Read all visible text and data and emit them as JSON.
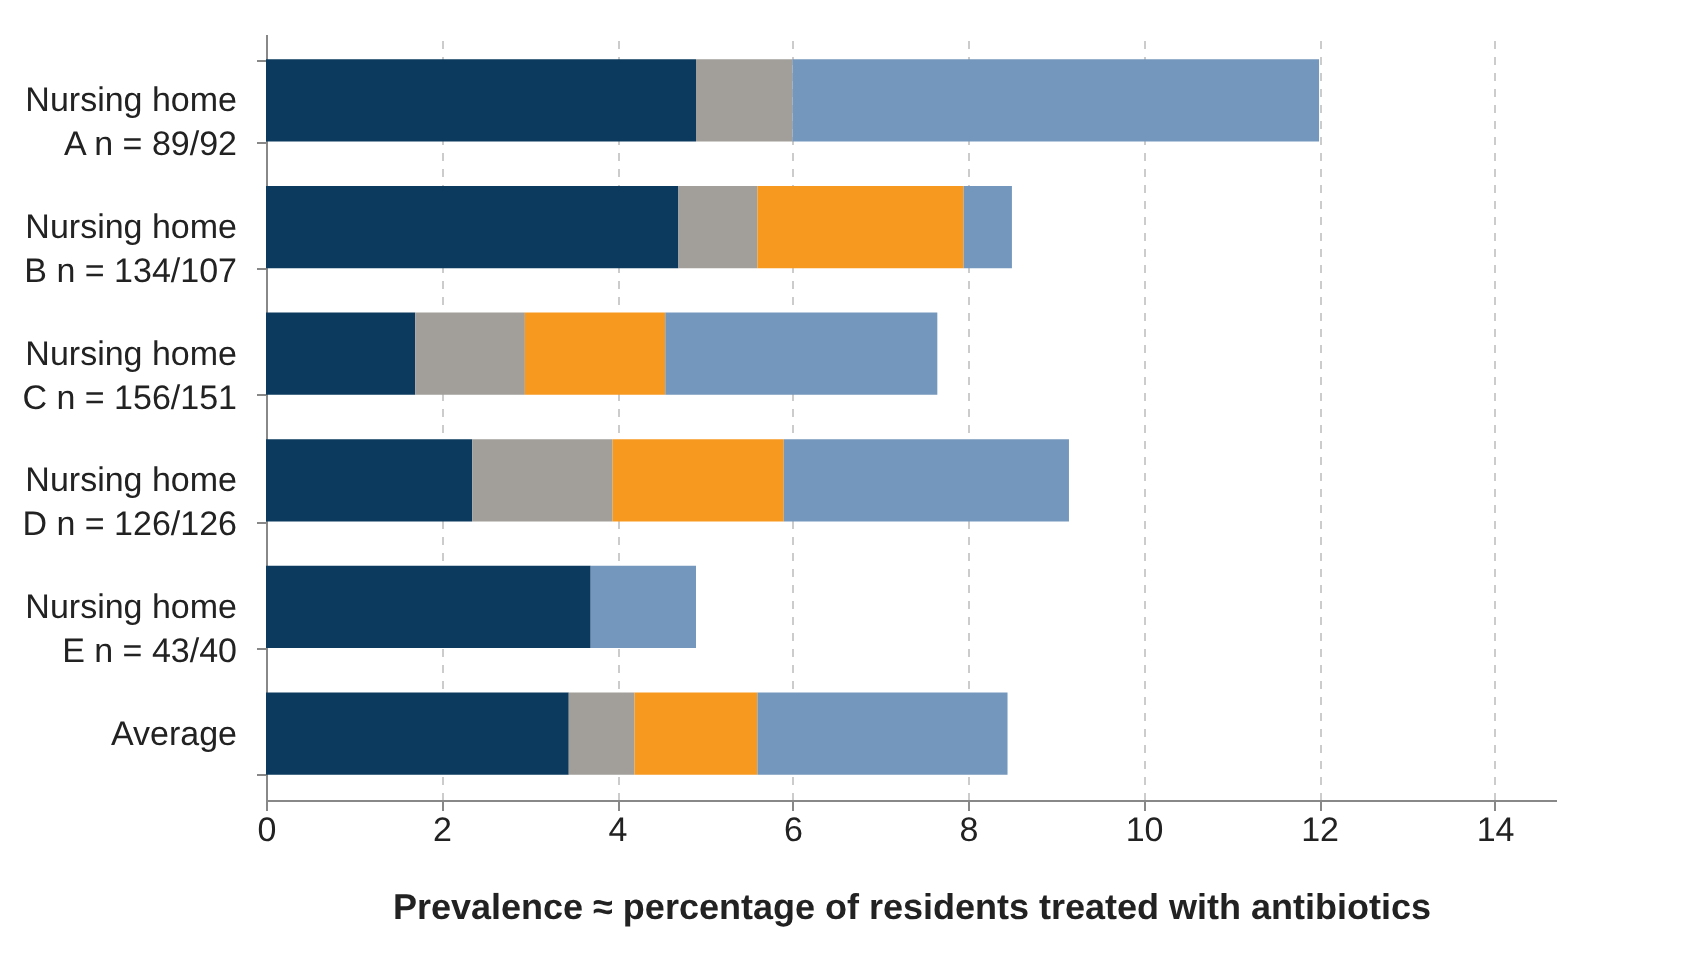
{
  "chart_data": {
    "type": "bar",
    "orientation": "horizontal",
    "stacked": true,
    "categories": [
      "Nursing home\nA  n = 89/92",
      "Nursing home\nB  n = 134/107",
      "Nursing home\nC  n = 156/151",
      "Nursing home\nD  n = 126/126",
      "Nursing home\nE  n = 43/40",
      "Average"
    ],
    "series": [
      {
        "color": "#0b3a5e",
        "values": [
          4.9,
          4.7,
          1.7,
          2.35,
          3.7,
          3.45
        ]
      },
      {
        "color": "#a29f9a",
        "values": [
          1.1,
          0.9,
          1.25,
          1.6,
          null,
          0.75
        ]
      },
      {
        "color": "#f7991f",
        "values": [
          null,
          2.35,
          1.6,
          1.95,
          null,
          1.4
        ]
      },
      {
        "color": "#7497bd",
        "values": [
          6.0,
          0.55,
          3.1,
          3.25,
          1.2,
          2.85
        ]
      }
    ],
    "xlim": [
      0,
      14.7
    ],
    "xticks": [
      0,
      2,
      4,
      6,
      8,
      10,
      12,
      14
    ],
    "grid": "x",
    "xlabel": "Prevalence ≈  percentage of residents treated with antibiotics"
  }
}
